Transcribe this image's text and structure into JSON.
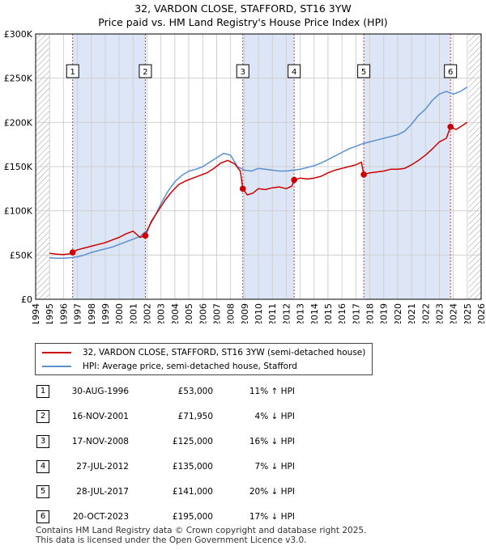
{
  "title_line1": "32, VARDON CLOSE, STAFFORD, ST16 3YW",
  "title_line2": "Price paid vs. HM Land Registry's House Price Index (HPI)",
  "colors": {
    "property": "#cc0000",
    "hpi": "#5b8fd0",
    "shade": "#dde6f6",
    "grid": "#d0d0d0",
    "marker_line": "#dd3333",
    "hatch": "#999999"
  },
  "legend": {
    "property_label": "32, VARDON CLOSE, STAFFORD, ST16 3YW (semi-detached house)",
    "hpi_label": "HPI: Average price, semi-detached house, Stafford"
  },
  "sales": [
    {
      "num": "1",
      "date": "30-AUG-1996",
      "price": "£53,000",
      "hpi": "11% ↑ HPI"
    },
    {
      "num": "2",
      "date": "16-NOV-2001",
      "price": "£71,950",
      "hpi": "4% ↓ HPI"
    },
    {
      "num": "3",
      "date": "17-NOV-2008",
      "price": "£125,000",
      "hpi": "16% ↓ HPI"
    },
    {
      "num": "4",
      "date": "27-JUL-2012",
      "price": "£135,000",
      "hpi": "7% ↓ HPI"
    },
    {
      "num": "5",
      "date": "28-JUL-2017",
      "price": "£141,000",
      "hpi": "20% ↓ HPI"
    },
    {
      "num": "6",
      "date": "20-OCT-2023",
      "price": "£195,000",
      "hpi": "17% ↓ HPI"
    }
  ],
  "footer_line1": "Contains HM Land Registry data © Crown copyright and database right 2025.",
  "footer_line2": "This data is licensed under the Open Government Licence v3.0.",
  "chart_data": {
    "type": "line",
    "title": "Price paid vs. HM Land Registry's House Price Index (HPI)",
    "xlim": [
      1994,
      2026
    ],
    "ylim": [
      0,
      300000
    ],
    "x_ticks": [
      1994,
      1995,
      1996,
      1997,
      1998,
      1999,
      2000,
      2001,
      2002,
      2003,
      2004,
      2005,
      2006,
      2007,
      2008,
      2009,
      2010,
      2011,
      2012,
      2013,
      2014,
      2015,
      2016,
      2017,
      2018,
      2019,
      2020,
      2021,
      2022,
      2023,
      2024,
      2025,
      2026
    ],
    "y_ticks": [
      {
        "value": 0,
        "label": "£0"
      },
      {
        "value": 50000,
        "label": "£50K"
      },
      {
        "value": 100000,
        "label": "£100K"
      },
      {
        "value": 150000,
        "label": "£150K"
      },
      {
        "value": 200000,
        "label": "£200K"
      },
      {
        "value": 250000,
        "label": "£250K"
      },
      {
        "value": 300000,
        "label": "£300K"
      }
    ],
    "grid": true,
    "shaded_periods": [
      [
        1996.66,
        2001.88
      ],
      [
        2008.88,
        2012.57
      ],
      [
        2017.57,
        2023.8
      ]
    ],
    "hatched_ranges": [
      [
        1994,
        1995.0
      ],
      [
        2025.1,
        2026
      ]
    ],
    "sale_points": [
      {
        "num": "1",
        "x": 1996.66,
        "y": 53000
      },
      {
        "num": "2",
        "x": 2001.88,
        "y": 71950
      },
      {
        "num": "3",
        "x": 2008.88,
        "y": 125000
      },
      {
        "num": "4",
        "x": 2012.57,
        "y": 135000
      },
      {
        "num": "5",
        "x": 2017.57,
        "y": 141000
      },
      {
        "num": "6",
        "x": 2023.8,
        "y": 195000
      }
    ],
    "series": [
      {
        "name": "32, VARDON CLOSE, STAFFORD, ST16 3YW (semi-detached house)",
        "x": [
          1995.0,
          1995.5,
          1996.0,
          1996.5,
          1996.66,
          1997.0,
          1997.5,
          1998.0,
          1998.5,
          1999.0,
          1999.5,
          2000.0,
          2000.5,
          2001.0,
          2001.5,
          2001.88,
          2002.3,
          2002.8,
          2003.3,
          2003.8,
          2004.3,
          2004.8,
          2005.3,
          2005.8,
          2006.3,
          2006.8,
          2007.3,
          2007.8,
          2008.3,
          2008.7,
          2008.88,
          2009.2,
          2009.6,
          2010.0,
          2010.5,
          2011.0,
          2011.5,
          2012.0,
          2012.4,
          2012.57,
          2013.0,
          2013.5,
          2014.0,
          2014.5,
          2015.0,
          2015.5,
          2016.0,
          2016.5,
          2017.0,
          2017.4,
          2017.57,
          2018.0,
          2018.5,
          2019.0,
          2019.5,
          2020.0,
          2020.5,
          2021.0,
          2021.5,
          2022.0,
          2022.5,
          2023.0,
          2023.5,
          2023.8,
          2024.2,
          2024.6,
          2025.0
        ],
        "y": [
          52000,
          51000,
          50500,
          51500,
          53000,
          56000,
          58000,
          60000,
          62000,
          64000,
          67000,
          70000,
          74000,
          77000,
          70000,
          71950,
          88000,
          100000,
          112000,
          122000,
          130000,
          134000,
          137000,
          140000,
          143000,
          148000,
          154000,
          157000,
          153000,
          145000,
          125000,
          118000,
          120000,
          125000,
          124000,
          126000,
          127000,
          125000,
          128000,
          135000,
          137000,
          136000,
          137000,
          139000,
          143000,
          146000,
          148000,
          150000,
          152000,
          155000,
          141000,
          143000,
          144000,
          145000,
          147000,
          147000,
          148000,
          152000,
          157000,
          163000,
          170000,
          178000,
          182000,
          195000,
          192000,
          196000,
          200000
        ]
      },
      {
        "name": "HPI: Average price, semi-detached house, Stafford",
        "x": [
          1995.0,
          1995.5,
          1996.0,
          1996.5,
          1997.0,
          1997.5,
          1998.0,
          1998.5,
          1999.0,
          1999.5,
          2000.0,
          2000.5,
          2001.0,
          2001.5,
          2002.0,
          2002.5,
          2003.0,
          2003.5,
          2004.0,
          2004.5,
          2005.0,
          2005.5,
          2006.0,
          2006.5,
          2007.0,
          2007.5,
          2008.0,
          2008.5,
          2009.0,
          2009.5,
          2010.0,
          2010.5,
          2011.0,
          2011.5,
          2012.0,
          2012.5,
          2013.0,
          2013.5,
          2014.0,
          2014.5,
          2015.0,
          2015.5,
          2016.0,
          2016.5,
          2017.0,
          2017.5,
          2018.0,
          2018.5,
          2019.0,
          2019.5,
          2020.0,
          2020.5,
          2021.0,
          2021.5,
          2022.0,
          2022.5,
          2023.0,
          2023.5,
          2024.0,
          2024.5,
          2025.0
        ],
        "y": [
          47000,
          46500,
          46500,
          47000,
          48000,
          50000,
          53000,
          55000,
          57000,
          59000,
          62000,
          65000,
          68000,
          71000,
          78000,
          92000,
          108000,
          122000,
          133000,
          140000,
          145000,
          147000,
          150000,
          155000,
          160000,
          165000,
          163000,
          150000,
          146000,
          145000,
          148000,
          147000,
          146000,
          145000,
          145000,
          146000,
          147000,
          149000,
          151000,
          154000,
          158000,
          162000,
          166000,
          170000,
          173000,
          176000,
          178000,
          180000,
          182000,
          184000,
          186000,
          190000,
          198000,
          208000,
          215000,
          225000,
          232000,
          235000,
          232000,
          235000,
          240000
        ]
      }
    ]
  }
}
